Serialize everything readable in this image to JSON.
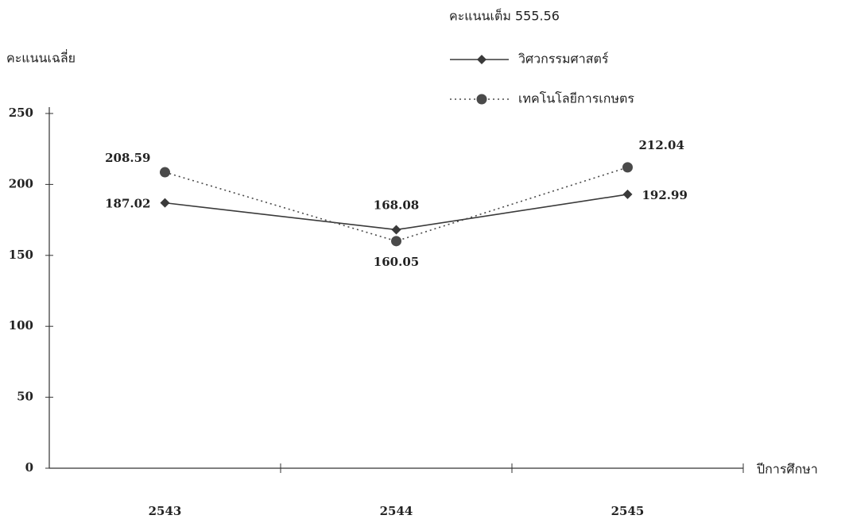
{
  "chart_data": {
    "type": "line",
    "annotation": "คะแนนเต็ม 555.56",
    "y_label": "คะแนนเฉลี่ย",
    "x_label": "ปีการศึกษา",
    "categories": [
      "2543",
      "2544",
      "2545"
    ],
    "series": [
      {
        "name": "วิศวกรรมศาสตร์",
        "color": "#3a3a3a",
        "line_style": "solid",
        "marker": "diamond",
        "values": [
          187.02,
          168.08,
          192.99
        ]
      },
      {
        "name": "เทคโนโลยีการเกษตร",
        "color": "#4a4a4a",
        "line_style": "dotted",
        "marker": "circle",
        "values": [
          208.59,
          160.05,
          212.04
        ]
      }
    ],
    "ylim": [
      0,
      250
    ],
    "yticks": [
      0,
      50,
      100,
      150,
      200,
      250
    ],
    "grid": false
  }
}
